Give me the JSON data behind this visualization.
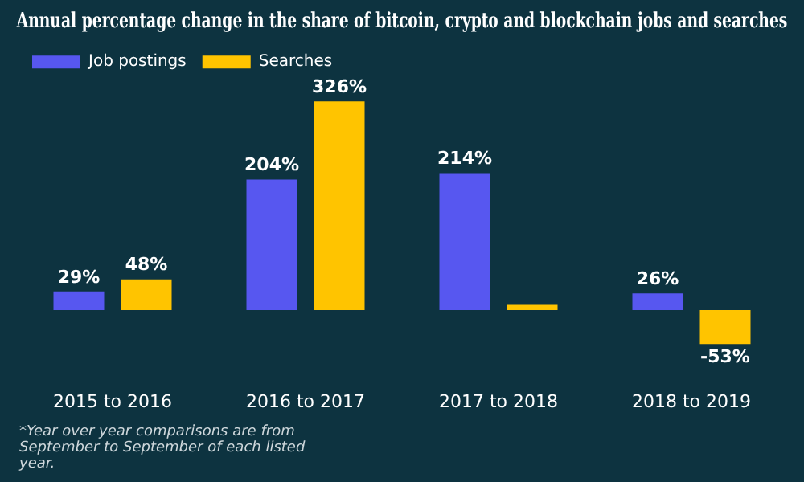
{
  "chart_data": {
    "type": "bar",
    "title": "Annual percentage change in the share of bitcoin, crypto and blockchain jobs and searches",
    "categories": [
      "2015 to 2016",
      "2016 to 2017",
      "2017 to 2018",
      "2018 to 2019"
    ],
    "series": [
      {
        "name": "Job postings",
        "color": "#5757f0",
        "values": [
          29,
          204,
          214,
          26
        ],
        "value_labels": [
          "29%",
          "204%",
          "214%",
          "26%"
        ]
      },
      {
        "name": "Searches",
        "color": "#ffc400",
        "values": [
          48,
          326,
          8,
          -53
        ],
        "value_labels": [
          "48%",
          "326%",
          null,
          "-53%"
        ]
      }
    ],
    "legend": "top left",
    "grid": false,
    "annotations": [
      "*Year over year comparisons are from September to September of each listed year."
    ]
  }
}
